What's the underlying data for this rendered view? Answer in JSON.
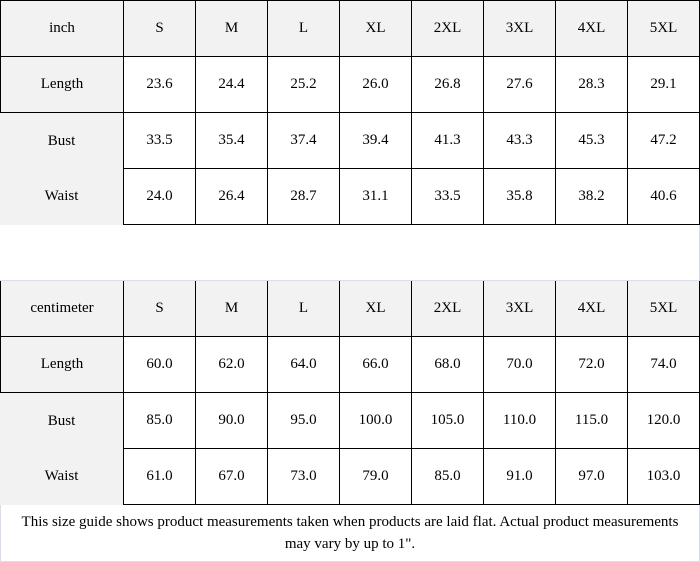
{
  "tables": [
    {
      "unit": "inch",
      "sizes": [
        "S",
        "M",
        "L",
        "XL",
        "2XL",
        "3XL",
        "4XL",
        "5XL"
      ],
      "rows": [
        {
          "label": "Length",
          "values": [
            "23.6",
            "24.4",
            "25.2",
            "26.0",
            "26.8",
            "27.6",
            "28.3",
            "29.1"
          ]
        },
        {
          "label": "Bust",
          "values": [
            "33.5",
            "35.4",
            "37.4",
            "39.4",
            "41.3",
            "43.3",
            "45.3",
            "47.2"
          ]
        },
        {
          "label": "Waist",
          "values": [
            "24.0",
            "26.4",
            "28.7",
            "31.1",
            "33.5",
            "35.8",
            "38.2",
            "40.6"
          ]
        }
      ]
    },
    {
      "unit": "centimeter",
      "sizes": [
        "S",
        "M",
        "L",
        "XL",
        "2XL",
        "3XL",
        "4XL",
        "5XL"
      ],
      "rows": [
        {
          "label": "Length",
          "values": [
            "60.0",
            "62.0",
            "64.0",
            "66.0",
            "68.0",
            "70.0",
            "72.0",
            "74.0"
          ]
        },
        {
          "label": "Bust",
          "values": [
            "85.0",
            "90.0",
            "95.0",
            "100.0",
            "105.0",
            "110.0",
            "115.0",
            "120.0"
          ]
        },
        {
          "label": "Waist",
          "values": [
            "61.0",
            "67.0",
            "73.0",
            "79.0",
            "85.0",
            "91.0",
            "97.0",
            "103.0"
          ]
        }
      ]
    }
  ],
  "footer": "This size guide shows product measurements taken when products are laid flat. Actual product measurements may vary by up to 1\"."
}
